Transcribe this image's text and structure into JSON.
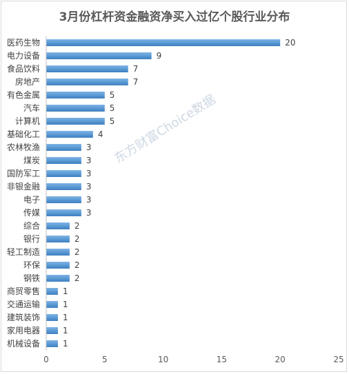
{
  "chart_data": {
    "type": "bar",
    "orientation": "horizontal",
    "title": "3月份杠杆资金融资净买入过亿个股行业分布",
    "categories": [
      "医药生物",
      "电力设备",
      "食品饮料",
      "房地产",
      "有色金属",
      "汽车",
      "计算机",
      "基础化工",
      "农林牧渔",
      "煤炭",
      "国防军工",
      "非银金融",
      "电子",
      "传媒",
      "综合",
      "银行",
      "轻工制造",
      "环保",
      "钢铁",
      "商贸零售",
      "交通运输",
      "建筑装饰",
      "家用电器",
      "机械设备"
    ],
    "values": [
      20,
      9,
      7,
      7,
      5,
      5,
      5,
      4,
      3,
      3,
      3,
      3,
      3,
      3,
      2,
      2,
      2,
      2,
      2,
      1,
      1,
      1,
      1,
      1
    ],
    "xlim": [
      0,
      25
    ],
    "xticks": [
      0,
      5,
      10,
      15,
      20,
      25
    ],
    "grid": false,
    "bar_color": "#5b9bd5"
  },
  "watermark": "东方财富Choice数据"
}
